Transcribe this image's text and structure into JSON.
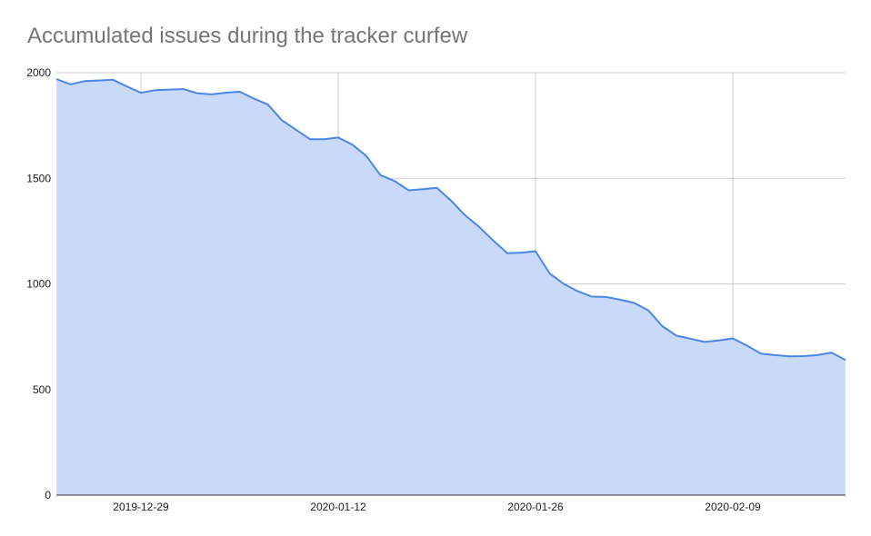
{
  "chart_data": {
    "type": "area",
    "title": "Accumulated issues during the tracker curfew",
    "xlabel": "",
    "ylabel": "",
    "ylim": [
      0,
      2000
    ],
    "yticks": [
      0,
      500,
      1000,
      1500,
      2000
    ],
    "xlim": [
      "2019-12-23",
      "2020-02-17"
    ],
    "xticks": [
      "2019-12-29",
      "2020-01-12",
      "2020-01-26",
      "2020-02-09"
    ],
    "grid": true,
    "legend": "none",
    "colors": {
      "line": "#4a86e8",
      "fill": "#c9daf8",
      "grid": "#cccccc",
      "axis": "#333333"
    },
    "series": [
      {
        "x": [
          "2019-12-23",
          "2019-12-24",
          "2019-12-25",
          "2019-12-26",
          "2019-12-27",
          "2019-12-28",
          "2019-12-29",
          "2019-12-30",
          "2019-12-31",
          "2020-01-01",
          "2020-01-02",
          "2020-01-03",
          "2020-01-04",
          "2020-01-05",
          "2020-01-06",
          "2020-01-07",
          "2020-01-08",
          "2020-01-09",
          "2020-01-10",
          "2020-01-11",
          "2020-01-12",
          "2020-01-13",
          "2020-01-14",
          "2020-01-15",
          "2020-01-16",
          "2020-01-17",
          "2020-01-18",
          "2020-01-19",
          "2020-01-20",
          "2020-01-21",
          "2020-01-22",
          "2020-01-23",
          "2020-01-24",
          "2020-01-25",
          "2020-01-26",
          "2020-01-27",
          "2020-01-28",
          "2020-01-29",
          "2020-01-30",
          "2020-01-31",
          "2020-02-01",
          "2020-02-02",
          "2020-02-03",
          "2020-02-04",
          "2020-02-05",
          "2020-02-06",
          "2020-02-07",
          "2020-02-08",
          "2020-02-09",
          "2020-02-10",
          "2020-02-11",
          "2020-02-12",
          "2020-02-13",
          "2020-02-14",
          "2020-02-15",
          "2020-02-16",
          "2020-02-17"
        ],
        "values": [
          1970,
          1945,
          1960,
          1963,
          1967,
          1935,
          1905,
          1917,
          1920,
          1922,
          1903,
          1897,
          1905,
          1910,
          1878,
          1850,
          1775,
          1730,
          1685,
          1685,
          1693,
          1660,
          1605,
          1515,
          1487,
          1443,
          1448,
          1455,
          1395,
          1325,
          1270,
          1205,
          1145,
          1148,
          1155,
          1050,
          1000,
          965,
          940,
          938,
          925,
          910,
          875,
          800,
          755,
          740,
          725,
          732,
          742,
          708,
          670,
          663,
          657,
          658,
          663,
          675,
          640
        ]
      }
    ]
  }
}
